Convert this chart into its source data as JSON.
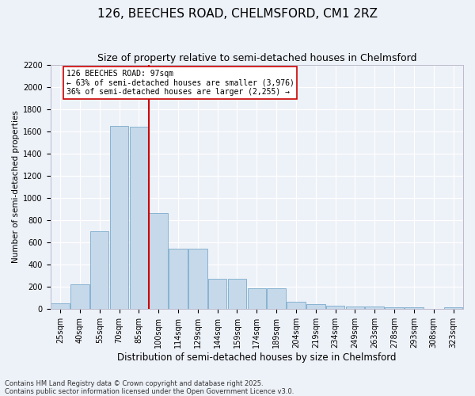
{
  "title1": "126, BEECHES ROAD, CHELMSFORD, CM1 2RZ",
  "title2": "Size of property relative to semi-detached houses in Chelmsford",
  "xlabel": "Distribution of semi-detached houses by size in Chelmsford",
  "ylabel": "Number of semi-detached properties",
  "bar_labels": [
    "25sqm",
    "40sqm",
    "55sqm",
    "70sqm",
    "85sqm",
    "100sqm",
    "114sqm",
    "129sqm",
    "144sqm",
    "159sqm",
    "174sqm",
    "189sqm",
    "204sqm",
    "219sqm",
    "234sqm",
    "249sqm",
    "263sqm",
    "278sqm",
    "293sqm",
    "308sqm",
    "323sqm"
  ],
  "bar_values": [
    50,
    220,
    700,
    1650,
    1640,
    860,
    540,
    540,
    270,
    270,
    185,
    185,
    60,
    40,
    30,
    20,
    20,
    10,
    10,
    0,
    10
  ],
  "bar_color": "#c6d9ea",
  "bar_edge_color": "#7aabcc",
  "vline_x": 4.5,
  "vline_color": "#cc0000",
  "annotation_title": "126 BEECHES ROAD: 97sqm",
  "annotation_line1": "← 63% of semi-detached houses are smaller (3,976)",
  "annotation_line2": "36% of semi-detached houses are larger (2,255) →",
  "ylim_max": 2200,
  "yticks": [
    0,
    200,
    400,
    600,
    800,
    1000,
    1200,
    1400,
    1600,
    1800,
    2000,
    2200
  ],
  "footnote1": "Contains HM Land Registry data © Crown copyright and database right 2025.",
  "footnote2": "Contains public sector information licensed under the Open Government Licence v3.0.",
  "bg_color": "#edf1f8",
  "grid_color": "#ffffff",
  "title1_fontsize": 11,
  "title2_fontsize": 9,
  "ylabel_fontsize": 7.5,
  "xlabel_fontsize": 8.5,
  "tick_fontsize": 7,
  "annot_fontsize": 7,
  "footnote_fontsize": 6
}
